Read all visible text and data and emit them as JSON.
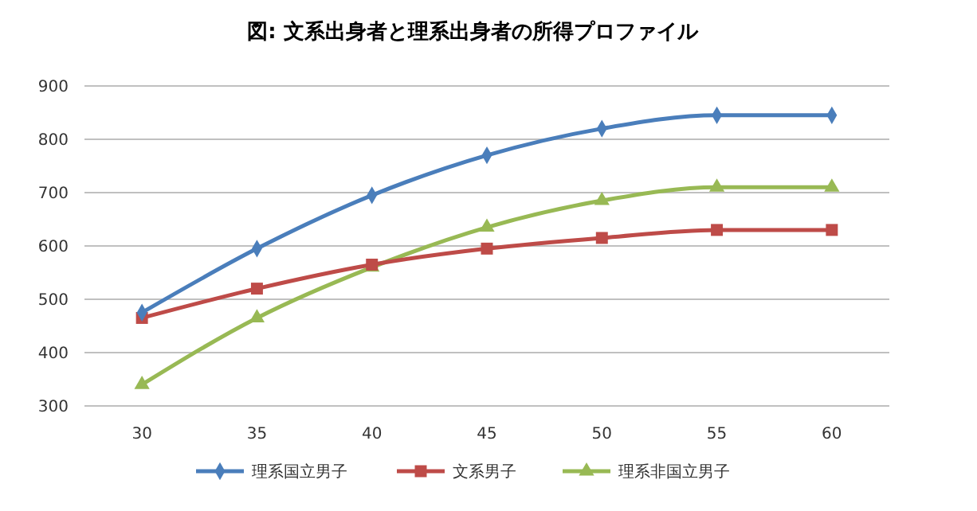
{
  "chart_data": {
    "type": "line",
    "title": "図: 文系出身者と理系出身者の所得プロファイル",
    "categories": [
      "30",
      "35",
      "40",
      "45",
      "50",
      "55",
      "60"
    ],
    "series": [
      {
        "name": "理系国立男子",
        "color": "#4a7ebb",
        "marker": "diamond",
        "values": [
          475,
          595,
          695,
          770,
          820,
          845,
          845
        ]
      },
      {
        "name": "文系男子",
        "color": "#be4b48",
        "marker": "square",
        "values": [
          465,
          520,
          565,
          595,
          615,
          630,
          630
        ]
      },
      {
        "name": "理系非国立男子",
        "color": "#98b954",
        "marker": "triangle",
        "values": [
          340,
          465,
          560,
          635,
          685,
          710,
          710
        ]
      }
    ],
    "ylim": [
      300,
      900
    ],
    "yticks": [
      300,
      400,
      500,
      600,
      700,
      800,
      900
    ],
    "grid": "y",
    "legend": "bottom"
  }
}
